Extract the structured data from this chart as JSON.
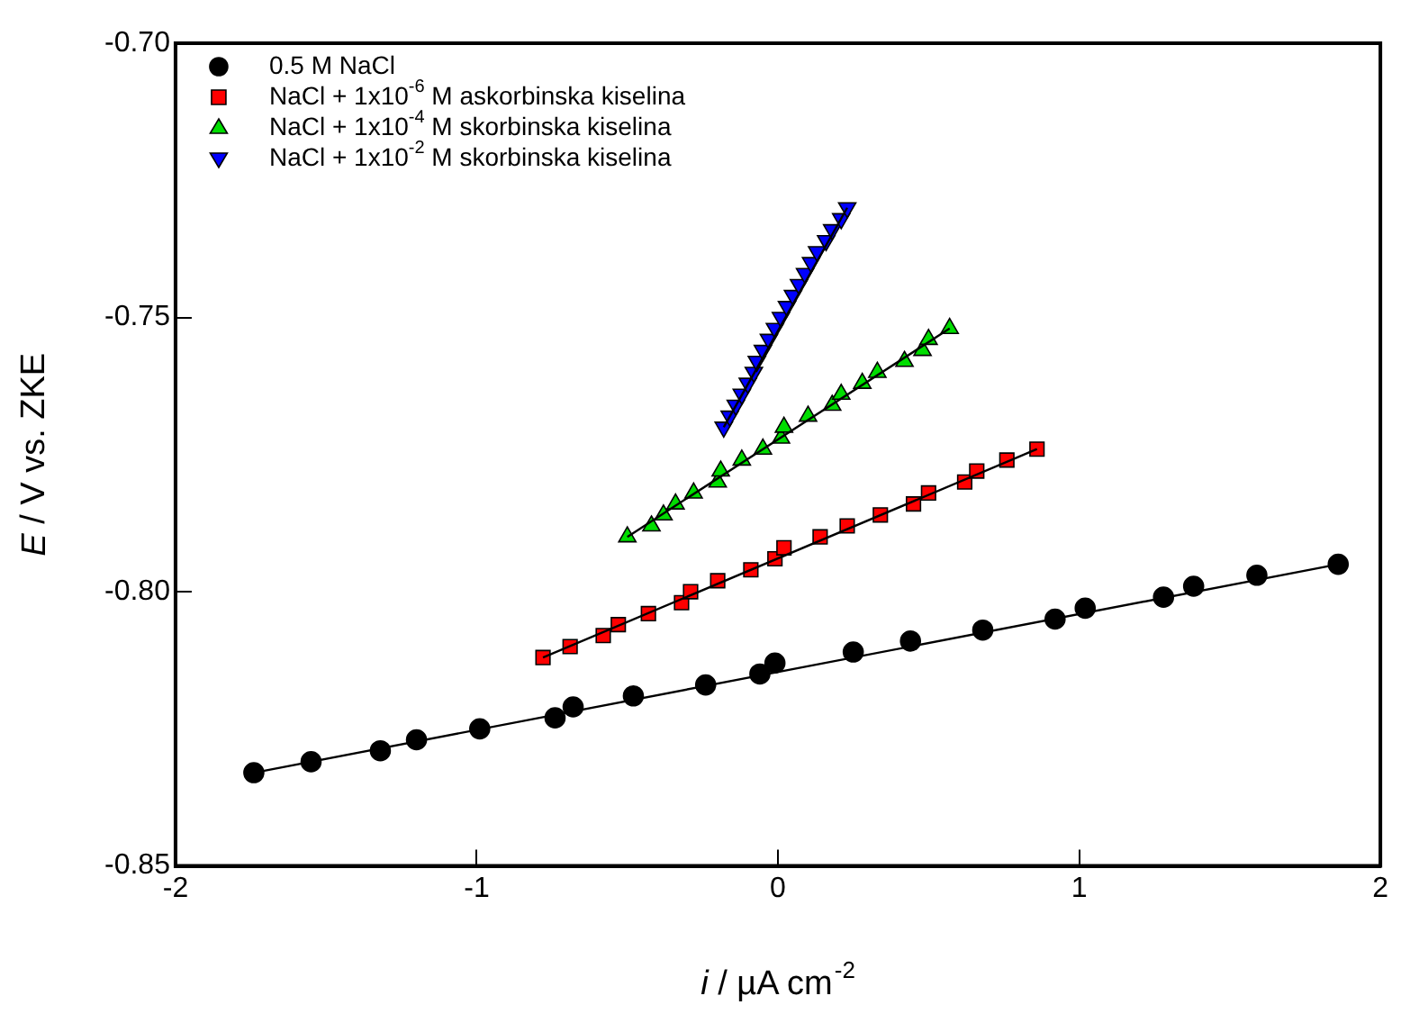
{
  "chart_data": {
    "type": "scatter",
    "xlabel": "i / µA cm$^{-2}$",
    "ylabel": "E / V vs. ZKE",
    "xlim": [
      -2,
      2
    ],
    "xticks": [
      -2,
      -1,
      0,
      1,
      2
    ],
    "ylim": [
      -0.85,
      -0.7
    ],
    "yticks": [
      {
        "value": -0.85,
        "label": "-0.85"
      },
      {
        "value": -0.8,
        "label": "-0.80"
      },
      {
        "value": -0.75,
        "label": "-0.75"
      },
      {
        "value": -0.7,
        "label": "-0.70"
      }
    ],
    "grid": false,
    "legend": "top left",
    "line_style": "solid",
    "series": [
      {
        "name": "0.5 M NaCl",
        "color": "#000000",
        "marker": "circle",
        "x": [
          -1.74,
          -1.55,
          -1.32,
          -1.2,
          -0.99,
          -0.74,
          -0.68,
          -0.48,
          -0.24,
          -0.06,
          -0.01,
          0.25,
          0.44,
          0.68,
          0.92,
          1.02,
          1.28,
          1.38,
          1.59,
          1.86
        ],
        "values": [
          -0.833,
          -0.831,
          -0.829,
          -0.827,
          -0.825,
          -0.823,
          -0.821,
          -0.819,
          -0.817,
          -0.815,
          -0.813,
          -0.811,
          -0.809,
          -0.807,
          -0.805,
          -0.803,
          -0.801,
          -0.799,
          -0.797,
          -0.795
        ]
      },
      {
        "name": "NaCl + 1x10$^{-6}$ M askorbinska kiselina",
        "color": "#ff0000",
        "marker": "square",
        "x": [
          -0.78,
          -0.69,
          -0.58,
          -0.53,
          -0.43,
          -0.32,
          -0.29,
          -0.2,
          -0.09,
          -0.01,
          0.02,
          0.14,
          0.23,
          0.34,
          0.45,
          0.5,
          0.62,
          0.66,
          0.76,
          0.86
        ],
        "values": [
          -0.812,
          -0.81,
          -0.808,
          -0.806,
          -0.804,
          -0.802,
          -0.8,
          -0.798,
          -0.796,
          -0.794,
          -0.792,
          -0.79,
          -0.788,
          -0.786,
          -0.784,
          -0.782,
          -0.78,
          -0.778,
          -0.776,
          -0.774
        ]
      },
      {
        "name": "NaCl + 1x10$^{-4}$ M skorbinska kiselina",
        "color": "#00dd00",
        "marker": "triangle",
        "x": [
          -0.5,
          -0.42,
          -0.38,
          -0.34,
          -0.28,
          -0.2,
          -0.19,
          -0.12,
          -0.05,
          0.01,
          0.02,
          0.1,
          0.18,
          0.21,
          0.28,
          0.33,
          0.42,
          0.48,
          0.5,
          0.57
        ],
        "values": [
          -0.79,
          -0.788,
          -0.786,
          -0.784,
          -0.782,
          -0.78,
          -0.778,
          -0.776,
          -0.774,
          -0.772,
          -0.77,
          -0.768,
          -0.766,
          -0.764,
          -0.762,
          -0.76,
          -0.758,
          -0.756,
          -0.754,
          -0.752
        ]
      },
      {
        "name": "NaCl + 1x10$^{-2}$ M skorbinska kiselina",
        "color": "#0000ff",
        "marker": "triangle_down",
        "x": [
          -0.18,
          -0.16,
          -0.14,
          -0.12,
          -0.1,
          -0.08,
          -0.07,
          -0.05,
          -0.03,
          -0.01,
          0.01,
          0.03,
          0.05,
          0.07,
          0.09,
          0.11,
          0.13,
          0.16,
          0.18,
          0.21,
          0.23
        ],
        "values": [
          -0.77,
          -0.768,
          -0.766,
          -0.764,
          -0.762,
          -0.76,
          -0.758,
          -0.756,
          -0.754,
          -0.752,
          -0.75,
          -0.748,
          -0.746,
          -0.744,
          -0.742,
          -0.74,
          -0.738,
          -0.736,
          -0.734,
          -0.732,
          -0.73
        ]
      },
      {
        "type": "line",
        "color": "#000000",
        "marker": "none",
        "x": [
          -1.74,
          1.86
        ],
        "values": [
          -0.833,
          -0.795
        ]
      },
      {
        "type": "line",
        "color": "#000000",
        "marker": "none",
        "x": [
          -0.78,
          0.86
        ],
        "values": [
          -0.812,
          -0.774
        ]
      },
      {
        "type": "line",
        "color": "#000000",
        "marker": "none",
        "x": [
          -0.5,
          0.57
        ],
        "values": [
          -0.79,
          -0.752
        ]
      },
      {
        "type": "line",
        "color": "#000000",
        "marker": "none",
        "x": [
          -0.18,
          0.23
        ],
        "values": [
          -0.77,
          -0.73
        ]
      }
    ]
  }
}
